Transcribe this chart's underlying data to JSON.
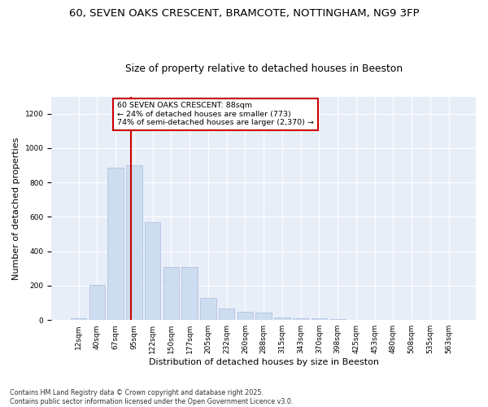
{
  "title1": "60, SEVEN OAKS CRESCENT, BRAMCOTE, NOTTINGHAM, NG9 3FP",
  "title2": "Size of property relative to detached houses in Beeston",
  "xlabel": "Distribution of detached houses by size in Beeston",
  "ylabel": "Number of detached properties",
  "categories": [
    "12sqm",
    "40sqm",
    "67sqm",
    "95sqm",
    "122sqm",
    "150sqm",
    "177sqm",
    "205sqm",
    "232sqm",
    "260sqm",
    "288sqm",
    "315sqm",
    "343sqm",
    "370sqm",
    "398sqm",
    "425sqm",
    "453sqm",
    "480sqm",
    "508sqm",
    "535sqm",
    "563sqm"
  ],
  "values": [
    10,
    205,
    885,
    900,
    570,
    310,
    310,
    130,
    65,
    50,
    45,
    15,
    12,
    12,
    5,
    3,
    2,
    1,
    0,
    0,
    0
  ],
  "bar_color": "#ccddf0",
  "bar_edge_color": "#aabbdd",
  "vline_x": 2.82,
  "annotation_text": "60 SEVEN OAKS CRESCENT: 88sqm\n← 24% of detached houses are smaller (773)\n74% of semi-detached houses are larger (2,370) →",
  "annotation_box_color": "#ffffff",
  "annotation_box_edge": "#cc0000",
  "vline_color": "#cc0000",
  "ylim": [
    0,
    1300
  ],
  "yticks": [
    0,
    200,
    400,
    600,
    800,
    1000,
    1200
  ],
  "background_color": "#e8eef8",
  "footer": "Contains HM Land Registry data © Crown copyright and database right 2025.\nContains public sector information licensed under the Open Government Licence v3.0.",
  "title_fontsize": 9.5,
  "subtitle_fontsize": 8.8,
  "tick_fontsize": 6.5,
  "label_fontsize": 8,
  "footer_fontsize": 5.8
}
